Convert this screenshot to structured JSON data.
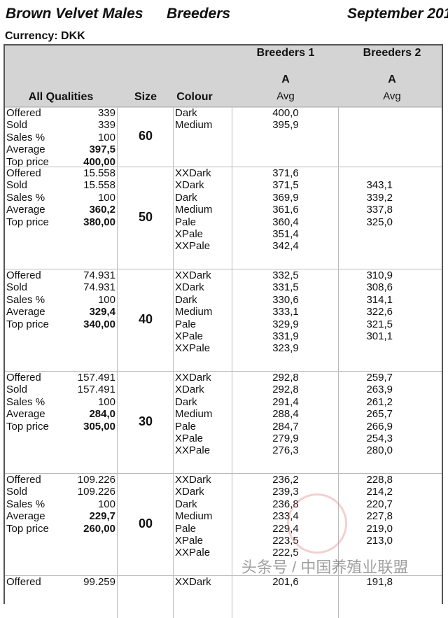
{
  "header": {
    "title": "Brown Velvet Males",
    "category": "Breeders",
    "date": "September 201",
    "currency": "Currency: DKK"
  },
  "table_header": {
    "qualities": "All Qualities",
    "size": "Size",
    "colour": "Colour",
    "breeders1": {
      "label": "Breeders 1",
      "grade": "A",
      "stat": "Avg"
    },
    "breeders2": {
      "label": "Breeders 2",
      "grade": "A",
      "stat": "Avg"
    }
  },
  "stat_labels": [
    "Offered",
    "Sold",
    "Sales %",
    "Average",
    "Top price"
  ],
  "blocks": [
    {
      "size": "60",
      "stats": [
        "339",
        "339",
        "100",
        "397,5",
        "400,00"
      ],
      "colours": [
        "Dark",
        "Medium"
      ],
      "b1": [
        "400,0",
        "395,9"
      ],
      "b2": []
    },
    {
      "size": "50",
      "stats": [
        "15.558",
        "15.558",
        "100",
        "360,2",
        "380,00"
      ],
      "colours": [
        "XXDark",
        "XDark",
        "Dark",
        "Medium",
        "Pale",
        "XPale",
        "XXPale"
      ],
      "b1": [
        "371,6",
        "371,5",
        "369,9",
        "361,6",
        "360,4",
        "351,4",
        "342,4"
      ],
      "b2": [
        "",
        "343,1",
        "339,2",
        "337,8",
        "325,0",
        "",
        ""
      ]
    },
    {
      "size": "40",
      "stats": [
        "74.931",
        "74.931",
        "100",
        "329,4",
        "340,00"
      ],
      "colours": [
        "XXDark",
        "XDark",
        "Dark",
        "Medium",
        "Pale",
        "XPale",
        "XXPale"
      ],
      "b1": [
        "332,5",
        "331,5",
        "330,6",
        "333,1",
        "329,9",
        "331,9",
        "323,9"
      ],
      "b2": [
        "310,9",
        "308,6",
        "314,1",
        "322,6",
        "321,5",
        "301,1",
        ""
      ]
    },
    {
      "size": "30",
      "stats": [
        "157.491",
        "157.491",
        "100",
        "284,0",
        "305,00"
      ],
      "colours": [
        "XXDark",
        "XDark",
        "Dark",
        "Medium",
        "Pale",
        "XPale",
        "XXPale"
      ],
      "b1": [
        "292,8",
        "292,8",
        "291,4",
        "288,4",
        "284,7",
        "279,9",
        "276,3"
      ],
      "b2": [
        "259,7",
        "263,9",
        "261,2",
        "265,7",
        "266,9",
        "254,3",
        "280,0"
      ]
    },
    {
      "size": "00",
      "stats": [
        "109.226",
        "109.226",
        "100",
        "229,7",
        "260,00"
      ],
      "colours": [
        "XXDark",
        "XDark",
        "Dark",
        "Medium",
        "Pale",
        "XPale",
        "XXPale"
      ],
      "b1": [
        "236,2",
        "239,3",
        "236,8",
        "233,4",
        "229,4",
        "223,5",
        "222,5"
      ],
      "b2": [
        "228,8",
        "214,2",
        "220,7",
        "227,8",
        "219,0",
        "213,0",
        ""
      ]
    },
    {
      "size": "",
      "stats": [
        "99.259",
        "",
        "",
        "",
        ""
      ],
      "colours": [
        "XXDark"
      ],
      "b1": [
        "201,6"
      ],
      "b2": [
        "191,8"
      ]
    }
  ],
  "watermark": "头条号 / 中国养殖业联盟"
}
